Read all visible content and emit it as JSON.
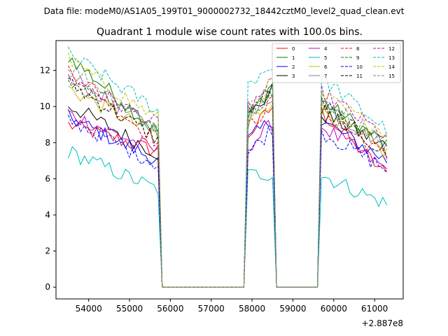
{
  "chart_data": {
    "type": "line",
    "suptitle": "Data file: modeM0/AS1A05_199T01_9000002732_18442cztM0_level2_quad_clean.evt",
    "title": "Quadrant 1 module wise count rates with 100.0s bins.",
    "xlabel": "",
    "ylabel": "",
    "x_offset_label": "+2.887e8",
    "xlim": [
      53200,
      61700
    ],
    "ylim": [
      -0.65,
      13.65
    ],
    "xticks": [
      54000,
      55000,
      56000,
      57000,
      58000,
      59000,
      60000,
      61000
    ],
    "xtick_labels": [
      "54000",
      "55000",
      "56000",
      "57000",
      "58000",
      "59000",
      "60000",
      "61000"
    ],
    "yticks": [
      0,
      2,
      4,
      6,
      8,
      10,
      12
    ],
    "ytick_labels": [
      "0",
      "2",
      "4",
      "6",
      "8",
      "10",
      "12"
    ],
    "legend_position": "top-right",
    "legend_columns": 4,
    "segments": [
      {
        "start": 53500,
        "end": 55700,
        "type": "data"
      },
      {
        "start": 55800,
        "end": 57800,
        "type": "gap"
      },
      {
        "start": 57900,
        "end": 58500,
        "type": "data"
      },
      {
        "start": 58600,
        "end": 59600,
        "type": "gap"
      },
      {
        "start": 59700,
        "end": 61300,
        "type": "data"
      }
    ],
    "series": [
      {
        "name": "0",
        "color": "#ff0000",
        "dash": "solid",
        "seg1": [
          9.0,
          7.5
        ],
        "seg2": [
          8.4,
          10.0
        ],
        "seg3": [
          9.7,
          6.2
        ]
      },
      {
        "name": "1",
        "color": "#008000",
        "dash": "solid",
        "seg1": [
          12.8,
          8.6
        ],
        "seg2": [
          9.3,
          11.3
        ],
        "seg3": [
          10.3,
          7.9
        ]
      },
      {
        "name": "2",
        "color": "#0000ff",
        "dash": "solid",
        "seg1": [
          9.4,
          7.0
        ],
        "seg2": [
          8.1,
          9.3
        ],
        "seg3": [
          9.2,
          7.0
        ]
      },
      {
        "name": "3",
        "color": "#000000",
        "dash": "solid",
        "seg1": [
          10.1,
          7.4
        ],
        "seg2": [
          9.4,
          10.9
        ],
        "seg3": [
          9.6,
          7.8
        ]
      },
      {
        "name": "4",
        "color": "#bf00bf",
        "dash": "solid",
        "seg1": [
          9.6,
          7.5
        ],
        "seg2": [
          7.8,
          9.0
        ],
        "seg3": [
          8.9,
          6.5
        ]
      },
      {
        "name": "5",
        "color": "#00bfbf",
        "dash": "solid",
        "seg1": [
          7.5,
          5.4
        ],
        "seg2": [
          6.2,
          6.3
        ],
        "seg3": [
          6.2,
          4.6
        ]
      },
      {
        "name": "6",
        "color": "#bfbf00",
        "dash": "solid",
        "seg1": [
          11.0,
          8.4
        ],
        "seg2": [
          9.1,
          10.4
        ],
        "seg3": [
          9.9,
          7.4
        ]
      },
      {
        "name": "7",
        "color": "#808080",
        "dash": "solid",
        "seg1": [
          11.7,
          8.6
        ],
        "seg2": [
          9.2,
          10.6
        ],
        "seg3": [
          10.1,
          7.8
        ]
      },
      {
        "name": "8",
        "color": "#ff0000",
        "dash": "dashed",
        "seg1": [
          12.1,
          8.0
        ],
        "seg2": [
          8.8,
          10.3
        ],
        "seg3": [
          9.8,
          7.2
        ]
      },
      {
        "name": "9",
        "color": "#008000",
        "dash": "dashed",
        "seg1": [
          11.5,
          8.7
        ],
        "seg2": [
          9.6,
          10.8
        ],
        "seg3": [
          10.0,
          8.0
        ]
      },
      {
        "name": "10",
        "color": "#0000ff",
        "dash": "dashed",
        "seg1": [
          9.3,
          6.8
        ],
        "seg2": [
          7.4,
          8.8
        ],
        "seg3": [
          8.6,
          6.5
        ]
      },
      {
        "name": "11",
        "color": "#000000",
        "dash": "dashed",
        "seg1": [
          11.3,
          8.2
        ],
        "seg2": [
          9.8,
          10.9
        ],
        "seg3": [
          10.2,
          7.3
        ]
      },
      {
        "name": "12",
        "color": "#bf00bf",
        "dash": "dashed",
        "seg1": [
          11.6,
          9.0
        ],
        "seg2": [
          10.0,
          11.2
        ],
        "seg3": [
          10.8,
          8.3
        ]
      },
      {
        "name": "13",
        "color": "#00bfbf",
        "dash": "dashed",
        "seg1": [
          12.9,
          9.8
        ],
        "seg2": [
          11.3,
          12.3
        ],
        "seg3": [
          11.6,
          8.7
        ]
      },
      {
        "name": "14",
        "color": "#bfbf00",
        "dash": "dashed",
        "seg1": [
          12.6,
          9.3
        ],
        "seg2": [
          10.0,
          11.3
        ],
        "seg3": [
          10.6,
          8.5
        ]
      },
      {
        "name": "15",
        "color": "#808080",
        "dash": "dashed",
        "seg1": [
          12.3,
          8.8
        ],
        "seg2": [
          9.9,
          11.0
        ],
        "seg3": [
          10.4,
          8.1
        ]
      }
    ]
  }
}
